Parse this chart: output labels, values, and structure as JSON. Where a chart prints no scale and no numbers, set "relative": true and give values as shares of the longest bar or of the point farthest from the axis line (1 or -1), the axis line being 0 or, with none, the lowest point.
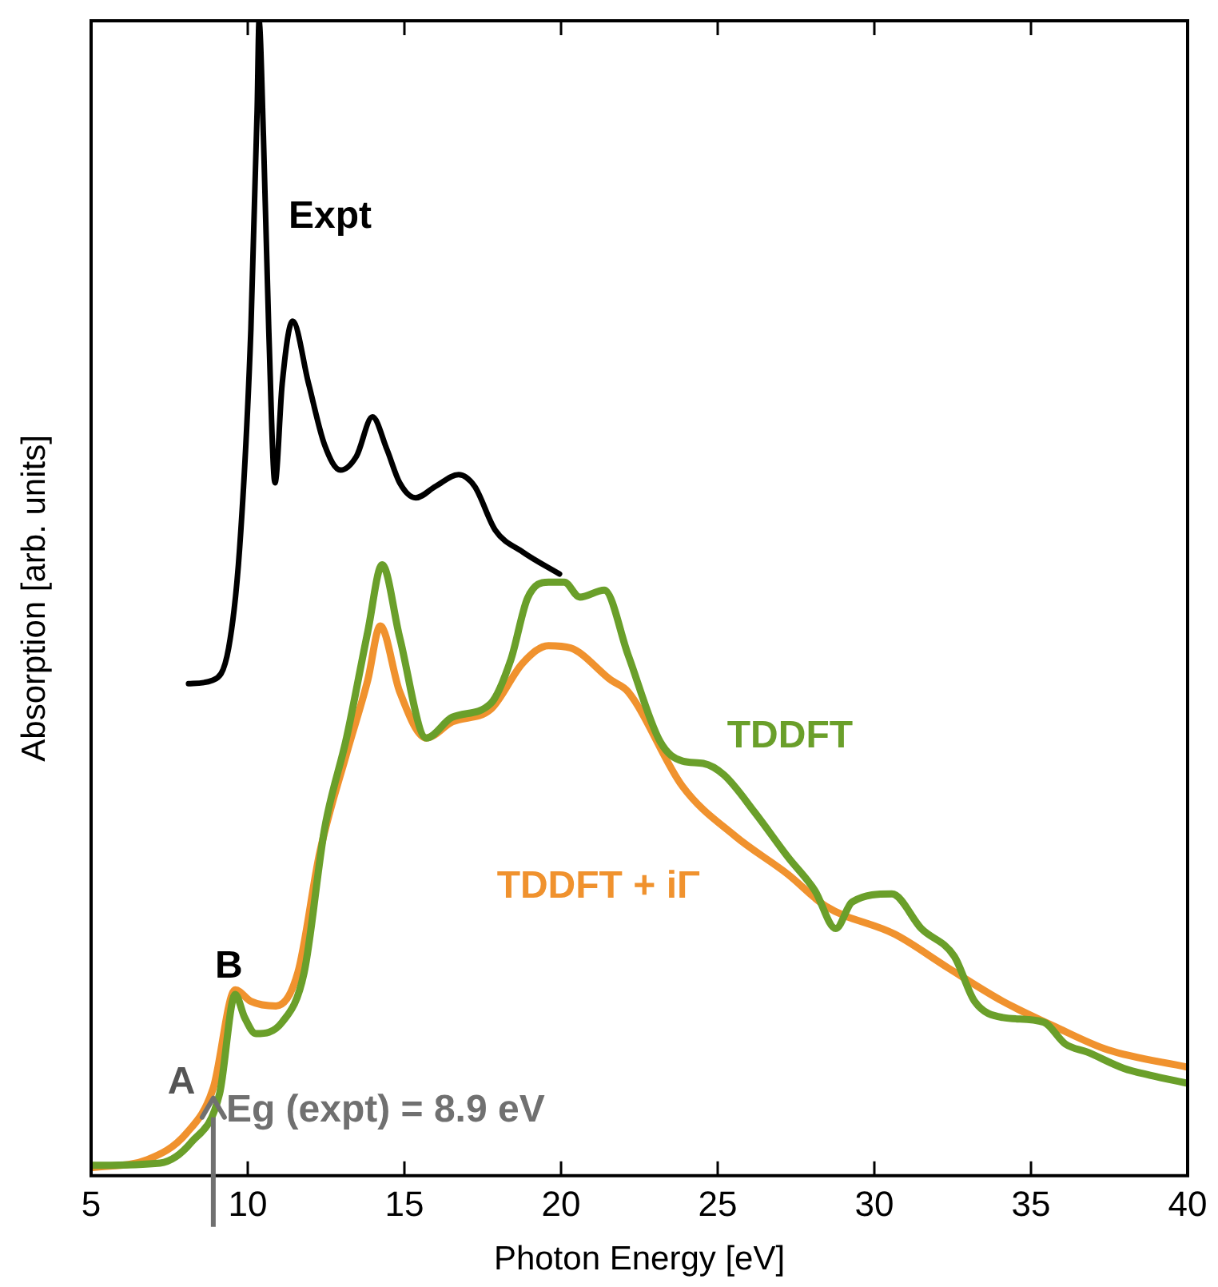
{
  "chart_data": {
    "type": "line",
    "relative": true,
    "xlabel": "Photon Energy [eV]",
    "ylabel": "Absorption [arb. units]",
    "xlim": [
      5,
      40
    ],
    "xticks": [
      5,
      10,
      15,
      20,
      25,
      30,
      35,
      40
    ],
    "grid": false,
    "legend": false,
    "marker": "none",
    "line_style": "solid",
    "series": [
      {
        "name": "Expt",
        "color": "#000000",
        "x": [
          8.11,
          8.88,
          9.39,
          9.74,
          10.1,
          10.3,
          10.36,
          10.5,
          10.67,
          10.87,
          11.1,
          11.43,
          11.94,
          12.45,
          12.96,
          13.47,
          13.98,
          14.44,
          14.85,
          15.36,
          16.0,
          16.73,
          17.24,
          17.9,
          18.78,
          19.95
        ],
        "values": [
          0.426,
          0.429,
          0.457,
          0.543,
          0.733,
          0.923,
          1.0,
          0.9,
          0.733,
          0.6,
          0.686,
          0.74,
          0.686,
          0.633,
          0.611,
          0.623,
          0.657,
          0.629,
          0.6,
          0.587,
          0.597,
          0.607,
          0.597,
          0.559,
          0.54,
          0.521
        ]
      },
      {
        "name": "TDDFT",
        "color": "#6a9f2a",
        "x": [
          5,
          7.2,
          8.2,
          9.1,
          9.6,
          9.9,
          10.26,
          11.1,
          11.8,
          12.45,
          13.16,
          13.83,
          14.29,
          14.85,
          15.7,
          16.53,
          17.76,
          18.4,
          18.93,
          19.6,
          20.1,
          20.6,
          21.38,
          22.14,
          23.16,
          23.88,
          24.54,
          25.2,
          26.2,
          27.24,
          28.1,
          28.77,
          29.29,
          30.56,
          31.5,
          32.55,
          33.2,
          34.1,
          35.4,
          36.1,
          36.8,
          37.96,
          38.8,
          40
        ],
        "values": [
          0.009,
          0.011,
          0.029,
          0.071,
          0.157,
          0.137,
          0.123,
          0.133,
          0.176,
          0.3,
          0.38,
          0.471,
          0.529,
          0.466,
          0.379,
          0.397,
          0.409,
          0.447,
          0.5,
          0.514,
          0.514,
          0.501,
          0.507,
          0.451,
          0.376,
          0.359,
          0.357,
          0.347,
          0.314,
          0.276,
          0.247,
          0.214,
          0.237,
          0.244,
          0.214,
          0.19,
          0.151,
          0.137,
          0.133,
          0.114,
          0.107,
          0.093,
          0.087,
          0.08
        ]
      },
      {
        "name": "TDDFT + iΓ",
        "color": "#f0922e",
        "x": [
          5,
          6.8,
          8.05,
          8.9,
          9.6,
          10.1,
          10.9,
          11.6,
          12.3,
          13.16,
          13.83,
          14.23,
          14.85,
          15.7,
          16.53,
          17.76,
          18.78,
          19.6,
          20.3,
          21.6,
          22.14,
          23.88,
          25.56,
          27.24,
          28.47,
          30.66,
          32.35,
          34.1,
          35.77,
          37.45,
          40
        ],
        "values": [
          0.007,
          0.014,
          0.037,
          0.076,
          0.161,
          0.151,
          0.147,
          0.176,
          0.28,
          0.366,
          0.429,
          0.476,
          0.419,
          0.379,
          0.393,
          0.404,
          0.444,
          0.459,
          0.457,
          0.429,
          0.419,
          0.337,
          0.294,
          0.261,
          0.233,
          0.209,
          0.18,
          0.151,
          0.129,
          0.109,
          0.094
        ]
      }
    ],
    "ref_lines": [
      {
        "axis": "x",
        "value": 8.9,
        "label": "Eg (expt) = 8.9 eV",
        "color": "#707070"
      }
    ],
    "annotations": [
      "A",
      {
        "text": "B",
        "x": 9.6,
        "y": 0.161
      }
    ]
  }
}
